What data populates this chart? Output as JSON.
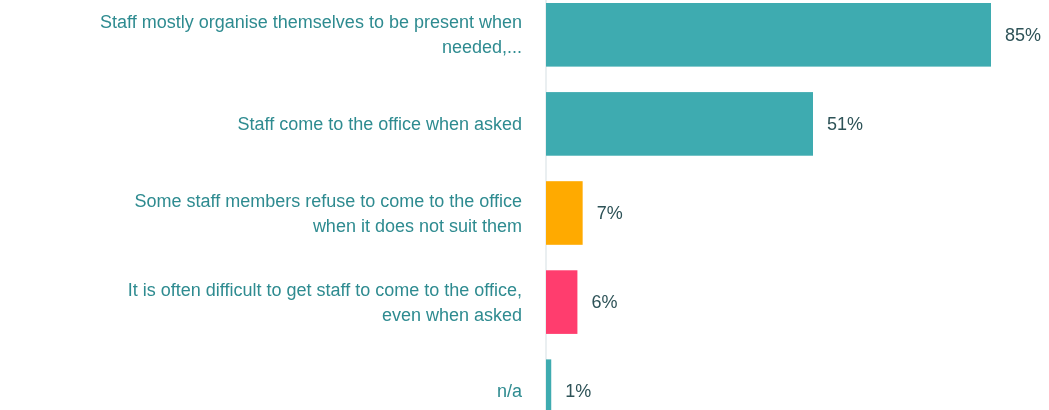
{
  "chart_data": {
    "type": "bar",
    "orientation": "horizontal",
    "categories": [
      "Staff mostly organise themselves to be present when needed,...",
      "Staff come to the office when asked",
      "Some staff members refuse to come to the office when it does not suit them",
      "It is often difficult to get staff to come to the office, even when asked",
      "n/a"
    ],
    "values": [
      85,
      51,
      7,
      6,
      1
    ],
    "value_labels": [
      "85%",
      "51%",
      "7%",
      "6%",
      "1%"
    ],
    "colors": [
      "#3eabb0",
      "#3eabb0",
      "#ffaa00",
      "#ff3d6e",
      "#3eabb0"
    ]
  }
}
